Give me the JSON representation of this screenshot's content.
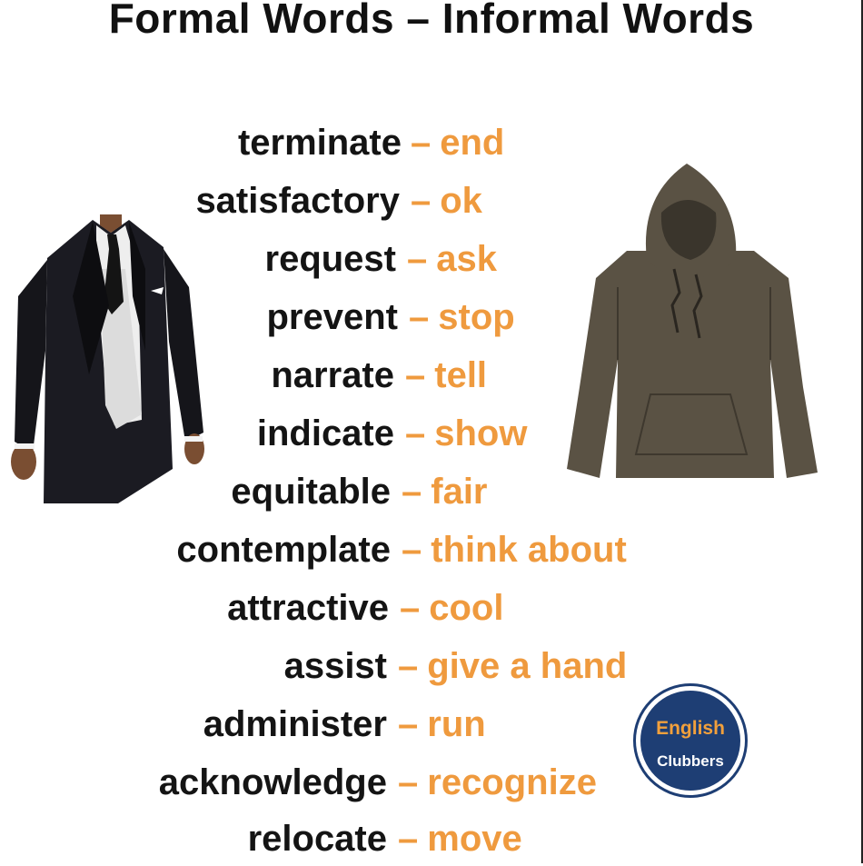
{
  "title": "Formal Words – Informal Words",
  "separator": "–",
  "pairs": [
    {
      "formal": "terminate",
      "informal": "end"
    },
    {
      "formal": "satisfactory",
      "informal": "ok"
    },
    {
      "formal": "request",
      "informal": "ask"
    },
    {
      "formal": "prevent",
      "informal": "stop"
    },
    {
      "formal": "narrate",
      "informal": "tell"
    },
    {
      "formal": "indicate",
      "informal": "show"
    },
    {
      "formal": "equitable",
      "informal": "fair"
    },
    {
      "formal": "contemplate",
      "informal": "think about"
    },
    {
      "formal": "attractive",
      "informal": "cool"
    },
    {
      "formal": "assist",
      "informal": "give a hand"
    },
    {
      "formal": "administer",
      "informal": "run"
    },
    {
      "formal": "acknowledge",
      "informal": "recognize"
    },
    {
      "formal": "relocate",
      "informal": "move"
    }
  ],
  "badge": {
    "line1": "English",
    "line2": "Clubbers"
  },
  "colors": {
    "formal": "#141414",
    "informal": "#ef9a3e",
    "badge": "#1e3e74",
    "hoodie": "#5a5244"
  },
  "icons": {
    "formal_image": "suit-illustration",
    "informal_image": "hoodie-illustration",
    "logo": "english-clubbers-logo"
  }
}
